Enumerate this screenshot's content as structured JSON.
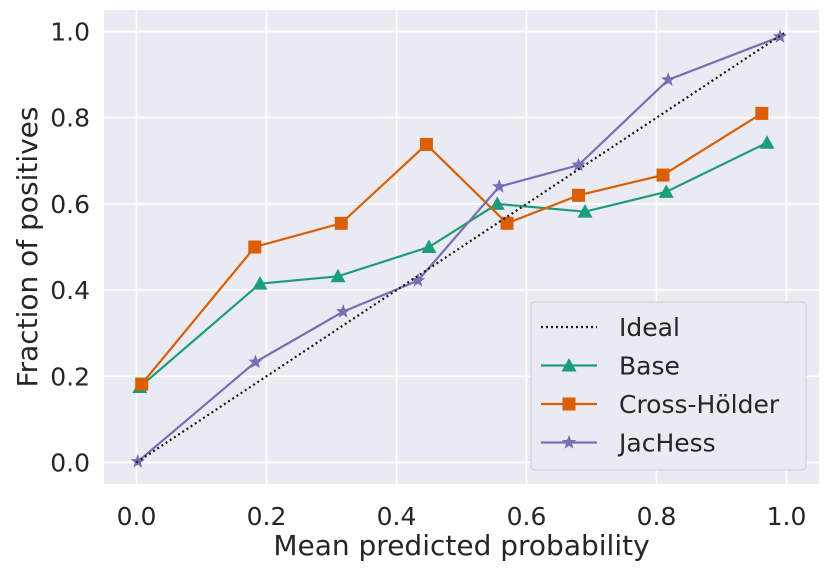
{
  "chart_data": {
    "type": "line",
    "title": "",
    "xlabel": "Mean predicted probability",
    "ylabel": "Fraction of positives",
    "xlim": [
      -0.05,
      1.05
    ],
    "ylim": [
      -0.05,
      1.05
    ],
    "xticks": [
      0.0,
      0.2,
      0.4,
      0.6,
      0.8,
      1.0
    ],
    "yticks": [
      0.0,
      0.2,
      0.4,
      0.6,
      0.8,
      1.0
    ],
    "xtick_labels": [
      "0.0",
      "0.2",
      "0.4",
      "0.6",
      "0.8",
      "1.0"
    ],
    "ytick_labels": [
      "0.0",
      "0.2",
      "0.4",
      "0.6",
      "0.8",
      "1.0"
    ],
    "grid": true,
    "legend_position": "lower-right",
    "series": [
      {
        "name": "Ideal",
        "color": "#1a1a1a",
        "style": "dotted",
        "marker": "none",
        "x": [
          0.0,
          1.0
        ],
        "y": [
          0.0,
          1.0
        ]
      },
      {
        "name": "Base",
        "color": "#1b9e77",
        "style": "solid",
        "marker": "triangle",
        "x": [
          0.005,
          0.19,
          0.31,
          0.45,
          0.555,
          0.69,
          0.815,
          0.97
        ],
        "y": [
          0.175,
          0.415,
          0.432,
          0.5,
          0.6,
          0.582,
          0.628,
          0.742
        ]
      },
      {
        "name": "Cross-Hölder",
        "color": "#d95f02",
        "style": "solid",
        "marker": "square",
        "x": [
          0.008,
          0.182,
          0.315,
          0.446,
          0.57,
          0.68,
          0.81,
          0.962
        ],
        "y": [
          0.182,
          0.5,
          0.555,
          0.738,
          0.555,
          0.62,
          0.667,
          0.81
        ]
      },
      {
        "name": "JacHess",
        "color": "#7570b3",
        "style": "solid",
        "marker": "star",
        "x": [
          0.002,
          0.183,
          0.318,
          0.433,
          0.558,
          0.68,
          0.818,
          0.99
        ],
        "y": [
          0.002,
          0.233,
          0.35,
          0.422,
          0.64,
          0.69,
          0.888,
          0.988
        ]
      }
    ]
  }
}
